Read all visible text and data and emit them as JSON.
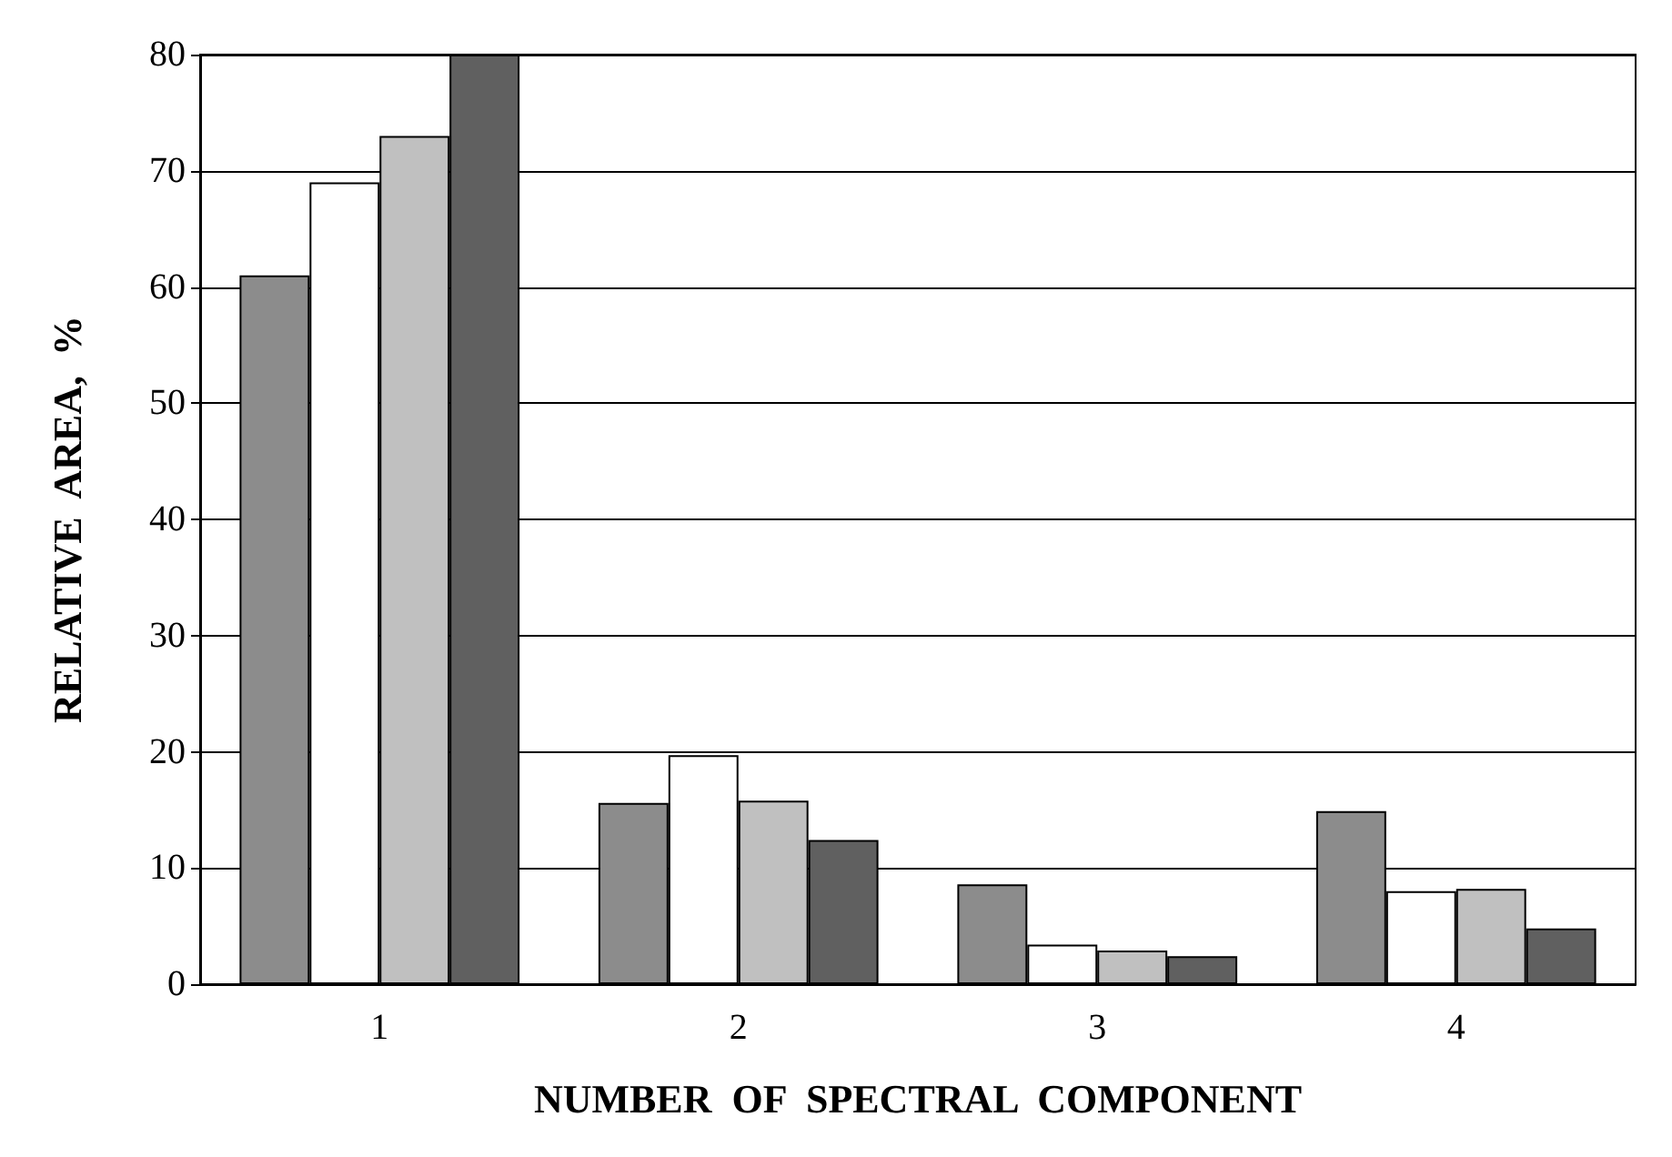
{
  "chart_data": {
    "type": "bar",
    "xlabel": "NUMBER  OF  SPECTRAL  COMPONENT",
    "ylabel": "RELATIVE  AREA,  %",
    "categories": [
      "1",
      "2",
      "3",
      "4"
    ],
    "series": [
      {
        "color": "#8c8c8c",
        "values": [
          61,
          15.6,
          8.6,
          14.9
        ]
      },
      {
        "color": "#ffffff",
        "values": [
          69,
          19.7,
          3.4,
          8.0
        ]
      },
      {
        "color": "#c0c0c0",
        "values": [
          73,
          15.8,
          2.9,
          8.2
        ]
      },
      {
        "color": "#606060",
        "values": [
          80,
          12.4,
          2.4,
          4.8
        ]
      }
    ],
    "ylim": [
      0,
      80
    ],
    "yticks": [
      0,
      10,
      20,
      30,
      40,
      50,
      60,
      70,
      80
    ],
    "grid": "y"
  }
}
